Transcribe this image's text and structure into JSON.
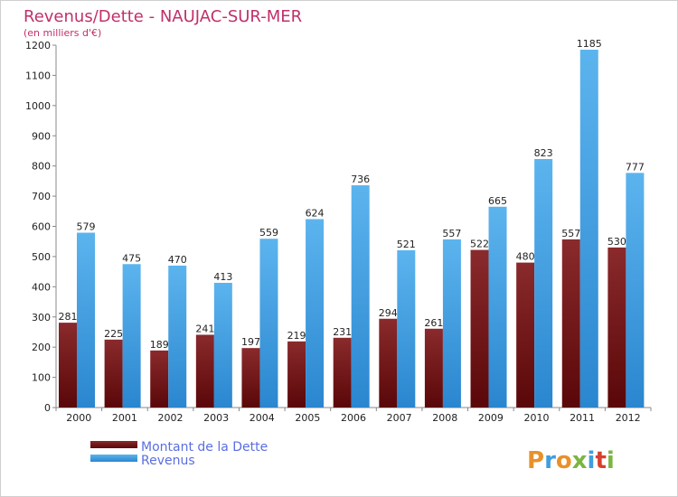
{
  "chart_data": {
    "type": "bar",
    "title": "Revenus/Dette - NAUJAC-SUR-MER",
    "subtitle": "(en milliers d'€)",
    "categories": [
      "2000",
      "2001",
      "2002",
      "2003",
      "2004",
      "2005",
      "2006",
      "2007",
      "2008",
      "2009",
      "2010",
      "2011",
      "2012"
    ],
    "series": [
      {
        "name": "Montant de la Dette",
        "color": "#7a1518",
        "values": [
          281,
          225,
          189,
          241,
          197,
          219,
          231,
          294,
          261,
          522,
          480,
          557,
          530
        ]
      },
      {
        "name": "Revenus",
        "color": "#3f9de0",
        "values": [
          579,
          475,
          470,
          413,
          559,
          624,
          736,
          521,
          557,
          665,
          823,
          1185,
          777
        ]
      }
    ],
    "ylim": [
      0,
      1200
    ],
    "yticks": [
      0,
      100,
      200,
      300,
      400,
      500,
      600,
      700,
      800,
      900,
      1000,
      1100,
      1200
    ],
    "grid": false,
    "legend": "bottom-left"
  },
  "brand": {
    "logo_text": "Proxiti"
  }
}
